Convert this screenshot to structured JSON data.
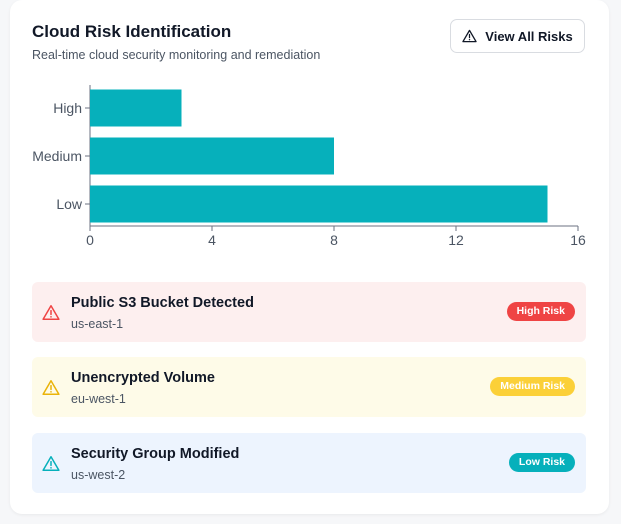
{
  "header": {
    "title": "Cloud Risk Identification",
    "subtitle": "Real-time cloud security monitoring and remediation",
    "view_all_label": "View All Risks",
    "view_all_icon": "warning-triangle-icon"
  },
  "chart_data": {
    "type": "bar",
    "orientation": "horizontal",
    "categories": [
      "High",
      "Medium",
      "Low"
    ],
    "values": [
      3,
      8,
      15
    ],
    "xlim": [
      0,
      16
    ],
    "xticks": [
      0,
      4,
      8,
      12,
      16
    ],
    "grid": false,
    "bar_color": "#06b0bb"
  },
  "risks": [
    {
      "title": "Public S3 Bucket Detected",
      "region": "us-east-1",
      "badge": "High Risk",
      "icon": "warning-triangle-icon",
      "color": "#ef4444"
    },
    {
      "title": "Unencrypted Volume",
      "region": "eu-west-1",
      "badge": "Medium Risk",
      "icon": "warning-triangle-icon",
      "color": "#eab308"
    },
    {
      "title": "Security Group Modified",
      "region": "us-west-2",
      "badge": "Low Risk",
      "icon": "warning-triangle-icon",
      "color": "#06b0bb"
    }
  ]
}
